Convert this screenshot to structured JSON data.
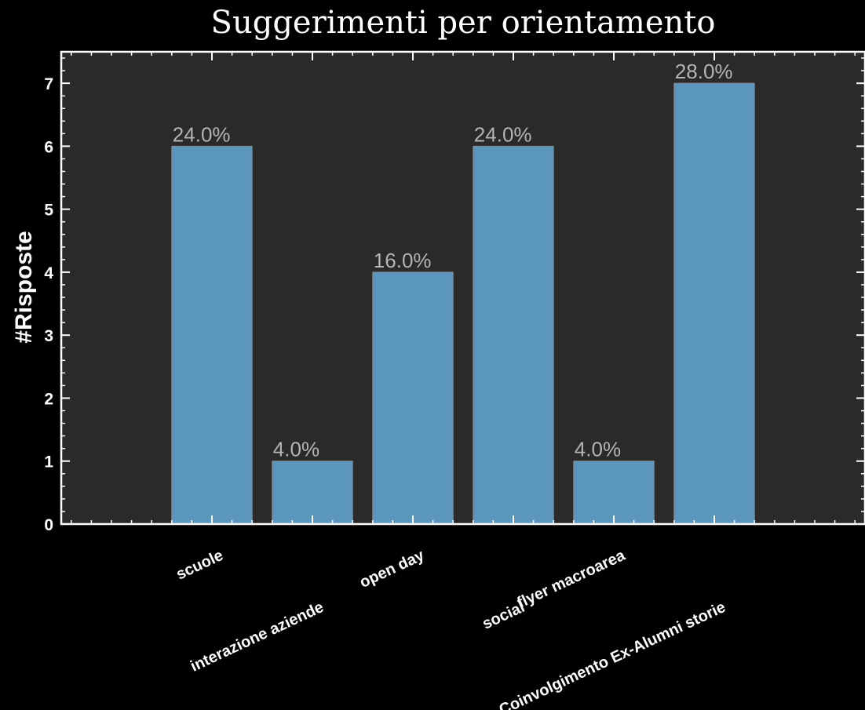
{
  "chart_data": {
    "type": "bar",
    "title": "Suggerimenti per orientamento",
    "xlabel": "",
    "ylabel": "#Risposte",
    "categories": [
      "scuole",
      "interazione aziende",
      "open day",
      "social",
      "flyer macroarea",
      "Coinvolgimento Ex-Alumni storie"
    ],
    "values": [
      6,
      1,
      4,
      6,
      1,
      7
    ],
    "data_labels": [
      "24.0%",
      "4.0%",
      "16.0%",
      "24.0%",
      "4.0%",
      "28.0%"
    ],
    "ylim": [
      0,
      7.5
    ],
    "yticks": [
      "0",
      "1",
      "2",
      "3",
      "4",
      "5",
      "6",
      "7"
    ],
    "grid": false,
    "colors": {
      "background": "#000000",
      "plot_background": "#2a2a2a",
      "bar_fill": "#5b96bf",
      "bar_edge": "#8a8a8a",
      "axes": "#ffffff",
      "data_label": "#b4b4b4"
    }
  }
}
